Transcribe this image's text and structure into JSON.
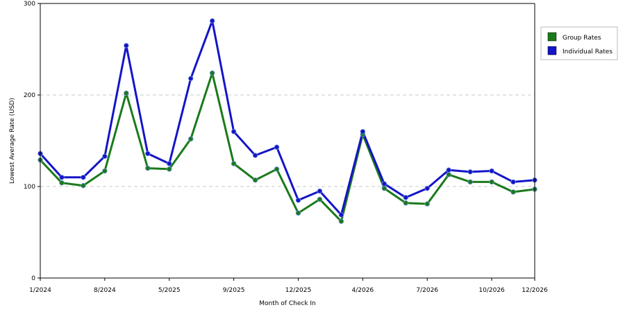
{
  "chart_data": {
    "type": "line",
    "xlabel": "Month of Check In",
    "ylabel": "Lowest Average Rate (USD)",
    "ylim": [
      0,
      300
    ],
    "yticks": [
      0,
      100,
      200,
      300
    ],
    "grid": "horizontal dashed",
    "legend_position": "right",
    "x_tick_labels": [
      {
        "index": 0,
        "label": "1/2024"
      },
      {
        "index": 3,
        "label": "8/2024"
      },
      {
        "index": 6,
        "label": "5/2025"
      },
      {
        "index": 9,
        "label": "9/2025"
      },
      {
        "index": 12,
        "label": "12/2025"
      },
      {
        "index": 15,
        "label": "4/2026"
      },
      {
        "index": 18,
        "label": "7/2026"
      },
      {
        "index": 21,
        "label": "10/2026"
      },
      {
        "index": 23,
        "label": "12/2026"
      }
    ],
    "x_count": 24,
    "series": [
      {
        "name": "Group Rates",
        "color": "#1a7a1a",
        "values": [
          129,
          104,
          101,
          117,
          202,
          120,
          119,
          152,
          224,
          125,
          107,
          119,
          71,
          86,
          62,
          157,
          98,
          82,
          81,
          113,
          105,
          105,
          94,
          97
        ]
      },
      {
        "name": "Individual Rates",
        "color": "#1414c8",
        "values": [
          136,
          110,
          110,
          133,
          254,
          136,
          125,
          218,
          281,
          160,
          134,
          143,
          85,
          95,
          69,
          160,
          103,
          88,
          98,
          118,
          116,
          117,
          105,
          107
        ]
      }
    ]
  }
}
